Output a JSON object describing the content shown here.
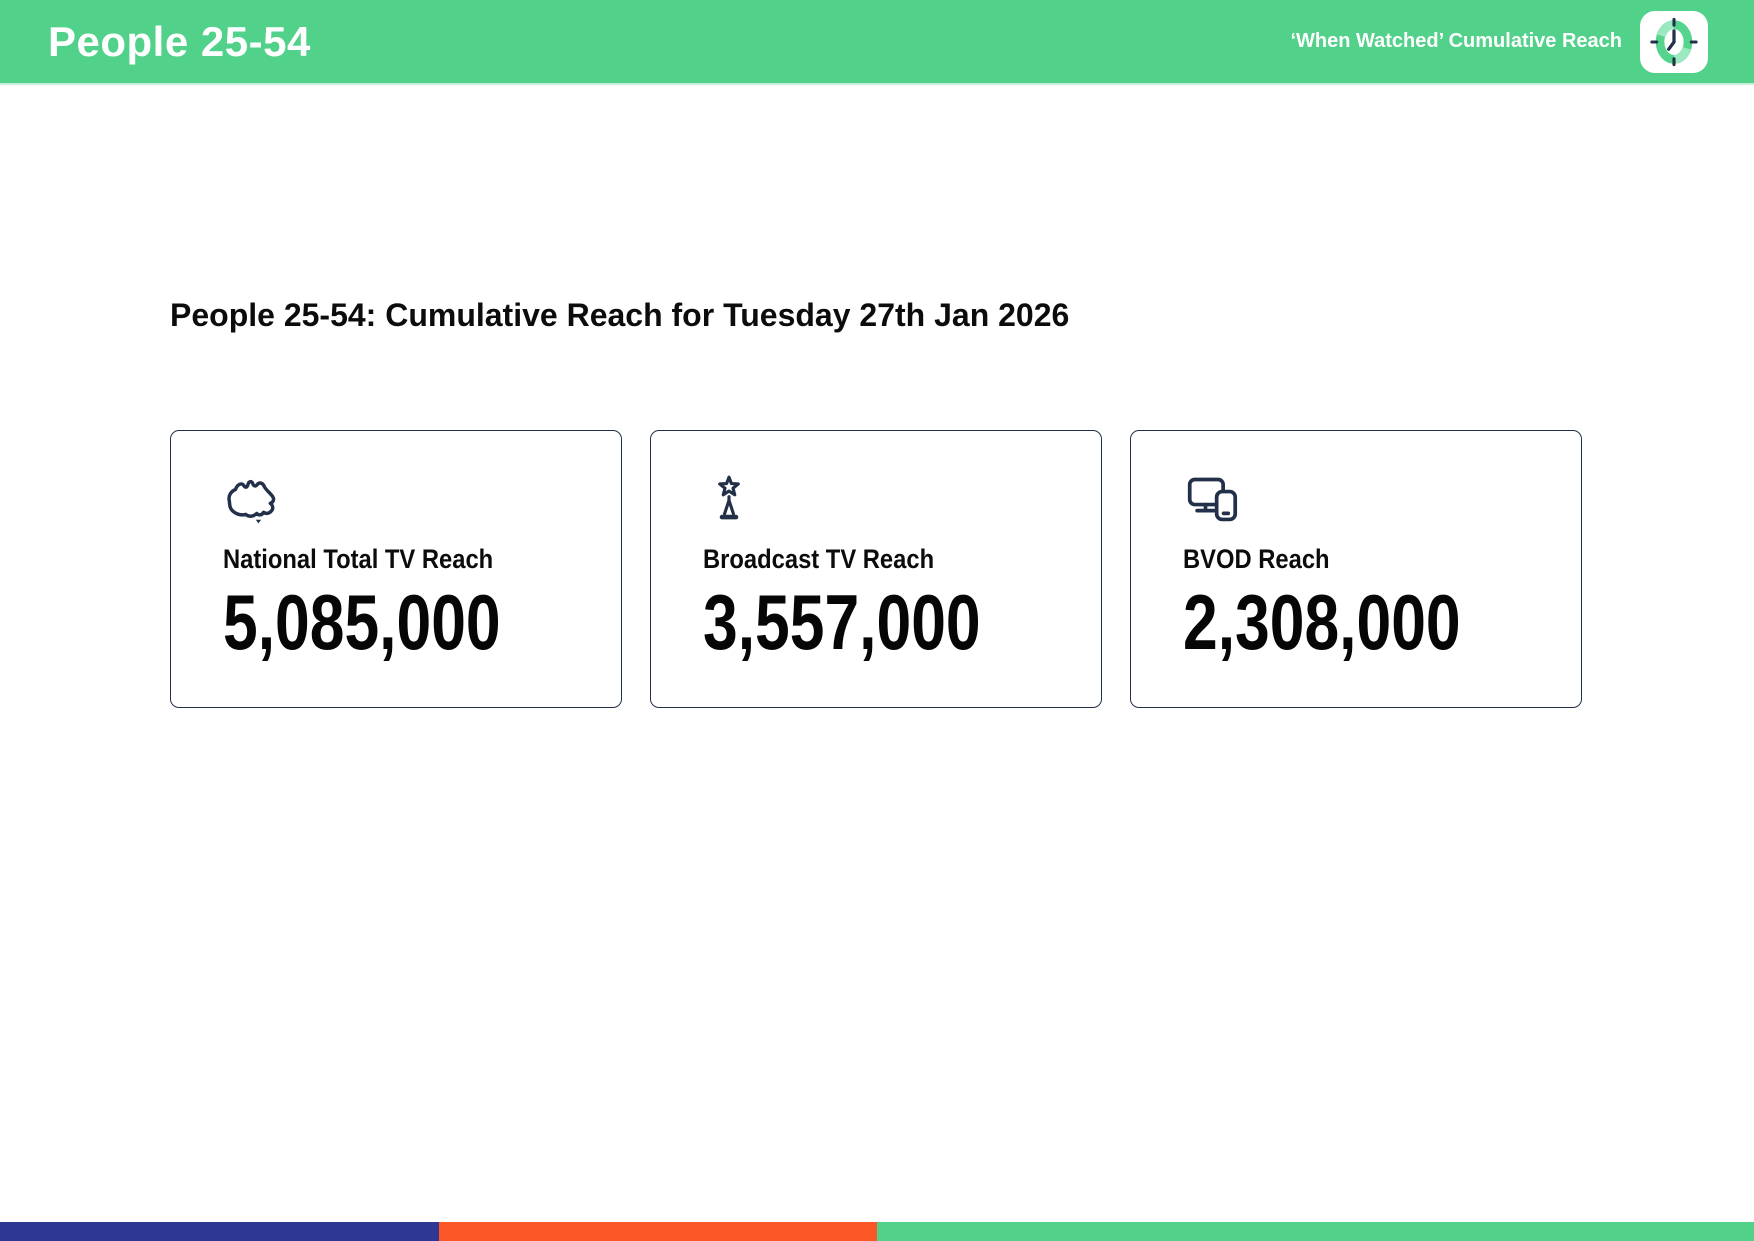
{
  "header": {
    "title": "People 25-54",
    "subtitle": "‘When Watched’ Cumulative Reach",
    "icon": "clock-icon",
    "bg_color": "#51d189"
  },
  "main": {
    "heading": "People 25-54: Cumulative Reach for Tuesday 27th Jan 2026",
    "cards": [
      {
        "icon": "australia-map-icon",
        "label": "National Total TV Reach",
        "value": "5,085,000"
      },
      {
        "icon": "broadcast-tower-icon",
        "label": "Broadcast TV Reach",
        "value": "3,557,000"
      },
      {
        "icon": "tv-and-phone-icon",
        "label": "BVOD Reach",
        "value": "2,308,000"
      }
    ]
  },
  "footer": {
    "segments": [
      {
        "name": "indigo",
        "color": "#2e3792",
        "width_pct": 25
      },
      {
        "name": "orange",
        "color": "#fb5626",
        "width_pct": 25
      },
      {
        "name": "green",
        "color": "#51d189",
        "width_pct": 50
      }
    ]
  },
  "colors": {
    "header_green": "#51d189",
    "card_border_navy": "#22304a",
    "icon_navy": "#22304a",
    "clock_ring_green": "#55d48d",
    "clock_ring_light": "#9ae9c0",
    "text_black": "#0c0c0c",
    "text_white": "#ffffff"
  }
}
